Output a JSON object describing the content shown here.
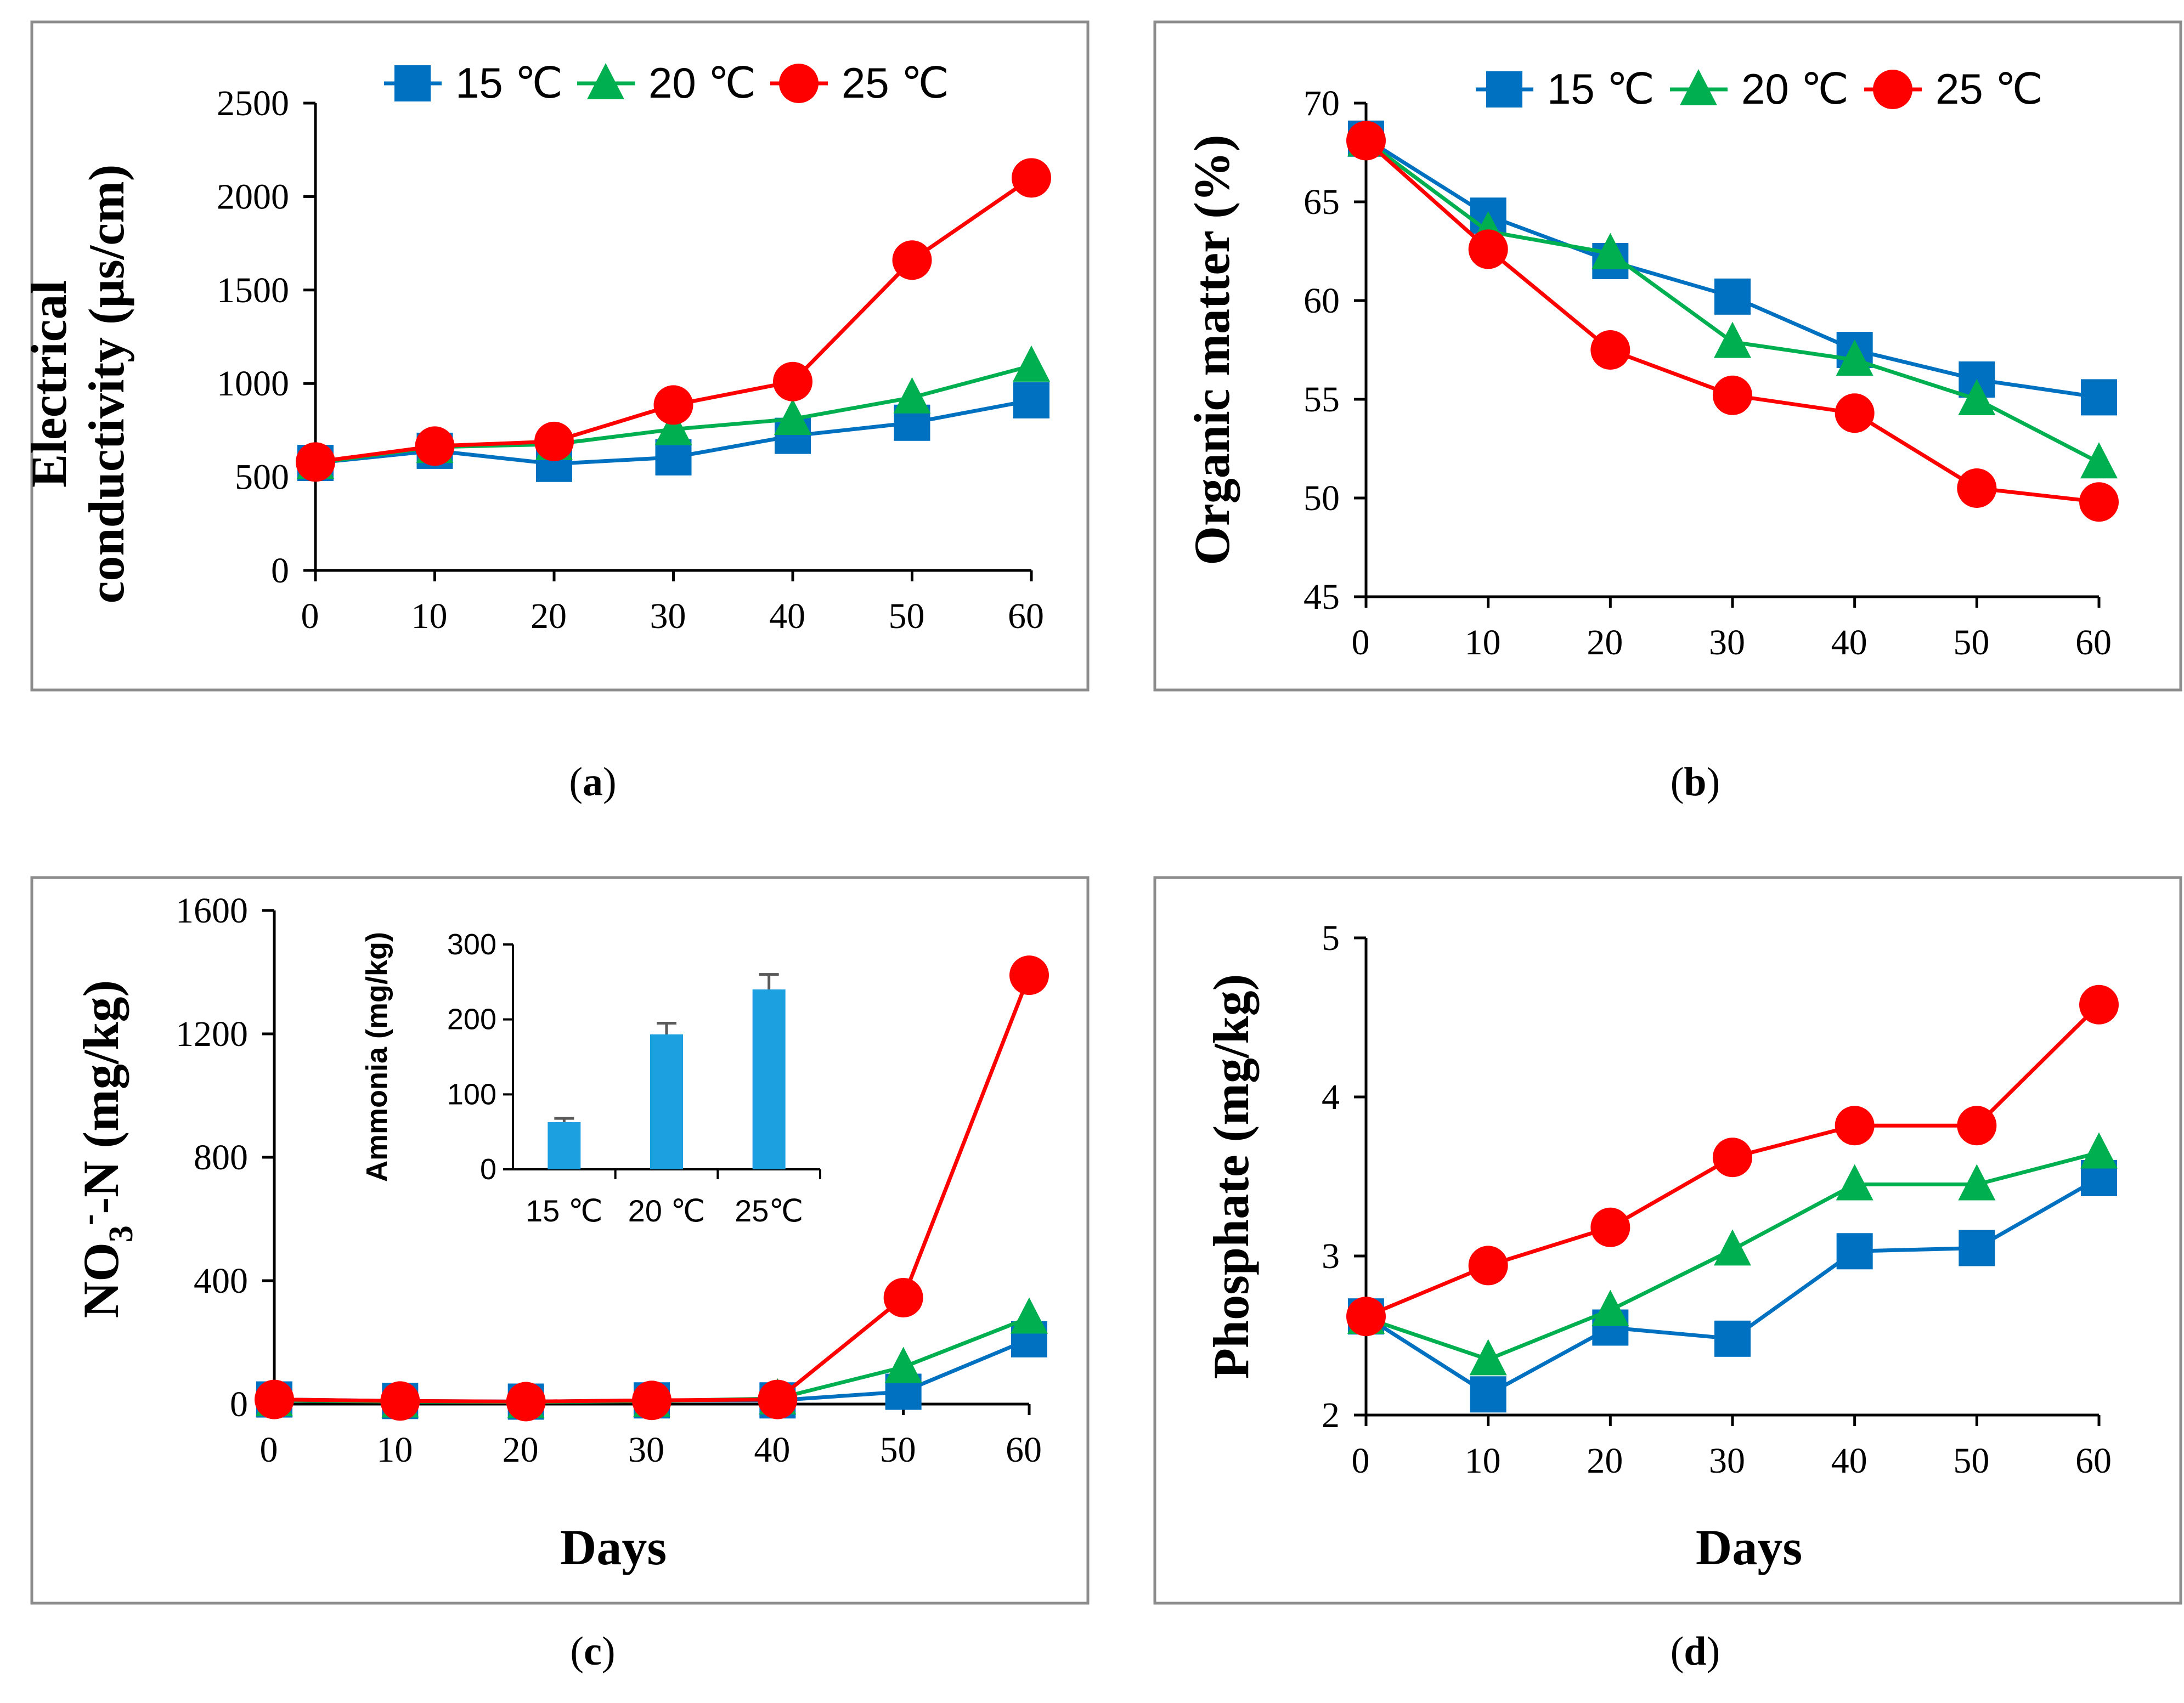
{
  "series_names": [
    "15 ℃",
    "20 ℃",
    "25 ℃"
  ],
  "colors": {
    "s15": "#0070c0",
    "s20": "#00b050",
    "s25": "#ff0000",
    "frame": "#8c8c8c",
    "axis": "#000000",
    "bar": "#1ca0e0",
    "err": "#595959"
  },
  "chart_data": [
    {
      "id": "a",
      "panel_label": "a",
      "type": "line",
      "title": "",
      "xlabel": "",
      "ylabel_lines": [
        "Electrical",
        "conductivity (μs/cm)"
      ],
      "x": [
        0,
        10,
        20,
        30,
        40,
        50,
        60
      ],
      "xticks": [
        "0",
        "10",
        "20",
        "30",
        "40",
        "50",
        "60"
      ],
      "ylim": [
        0,
        2500
      ],
      "yticks": [
        "0",
        "500",
        "1000",
        "1500",
        "2000",
        "2500"
      ],
      "legend": "top",
      "series": [
        {
          "name": "15 ℃",
          "marker": "square",
          "values": [
            575,
            640,
            570,
            605,
            720,
            790,
            910
          ]
        },
        {
          "name": "20 ℃",
          "marker": "triangle",
          "values": [
            575,
            660,
            675,
            755,
            810,
            925,
            1095
          ]
        },
        {
          "name": "25 ℃",
          "marker": "circle",
          "values": [
            580,
            665,
            690,
            885,
            1010,
            1660,
            2100
          ]
        }
      ]
    },
    {
      "id": "b",
      "panel_label": "b",
      "type": "line",
      "title": "",
      "xlabel": "",
      "ylabel_lines": [
        "Organic matter (%)"
      ],
      "x": [
        0,
        10,
        20,
        30,
        40,
        50,
        60
      ],
      "xticks": [
        "0",
        "10",
        "20",
        "30",
        "40",
        "50",
        "60"
      ],
      "ylim": [
        45,
        70
      ],
      "yticks": [
        "45",
        "50",
        "55",
        "60",
        "65",
        "70"
      ],
      "legend": "top",
      "series": [
        {
          "name": "15 ℃",
          "marker": "square",
          "values": [
            68.2,
            64.3,
            62.0,
            60.2,
            57.5,
            56.0,
            55.1
          ]
        },
        {
          "name": "20 ℃",
          "marker": "triangle",
          "values": [
            68.1,
            63.5,
            62.4,
            57.9,
            57.0,
            55.0,
            51.8
          ]
        },
        {
          "name": "25 ℃",
          "marker": "circle",
          "values": [
            68.1,
            62.6,
            57.5,
            55.2,
            54.3,
            50.5,
            49.8
          ]
        }
      ]
    },
    {
      "id": "c",
      "panel_label": "c",
      "type": "line",
      "title": "",
      "xlabel": "Days",
      "ylabel_parts": [
        "NO",
        "3",
        "-",
        "-N (mg/kg)"
      ],
      "x": [
        0,
        10,
        20,
        30,
        40,
        50,
        60
      ],
      "xticks": [
        "0",
        "10",
        "20",
        "30",
        "40",
        "50",
        "60"
      ],
      "ylim": [
        0,
        1600
      ],
      "yticks": [
        "0",
        "400",
        "800",
        "1200",
        "1600"
      ],
      "legend": "none",
      "series": [
        {
          "name": "15 ℃",
          "marker": "square",
          "values": [
            15,
            10,
            8,
            12,
            12,
            40,
            210
          ]
        },
        {
          "name": "20 ℃",
          "marker": "triangle",
          "values": [
            12,
            8,
            6,
            10,
            18,
            120,
            280
          ]
        },
        {
          "name": "25 ℃",
          "marker": "circle",
          "values": [
            15,
            10,
            8,
            12,
            15,
            345,
            1390
          ]
        }
      ],
      "inset": {
        "type": "bar",
        "categories": [
          "15 ℃",
          "20 ℃",
          "25℃"
        ],
        "values": [
          63,
          180,
          240
        ],
        "errors": [
          5,
          15,
          20
        ],
        "ylabel": "Ammonia (mg/kg)",
        "ylim": [
          0,
          300
        ],
        "yticks": [
          "0",
          "100",
          "200",
          "300"
        ]
      }
    },
    {
      "id": "d",
      "panel_label": "d",
      "type": "line",
      "title": "",
      "xlabel": "Days",
      "ylabel_lines": [
        "Phosphate (mg/kg)"
      ],
      "x": [
        0,
        10,
        20,
        30,
        40,
        50,
        60
      ],
      "xticks": [
        "0",
        "10",
        "20",
        "30",
        "40",
        "50",
        "60"
      ],
      "ylim": [
        2,
        5
      ],
      "yticks": [
        "2",
        "3",
        "4",
        "5"
      ],
      "legend": "none",
      "series": [
        {
          "name": "15 ℃",
          "marker": "square",
          "values": [
            2.62,
            2.13,
            2.55,
            2.48,
            3.03,
            3.05,
            3.49
          ]
        },
        {
          "name": "20 ℃",
          "marker": "triangle",
          "values": [
            2.61,
            2.35,
            2.66,
            3.04,
            3.45,
            3.45,
            3.65
          ]
        },
        {
          "name": "25 ℃",
          "marker": "circle",
          "values": [
            2.62,
            2.94,
            3.18,
            3.62,
            3.82,
            3.82,
            4.58
          ]
        }
      ]
    }
  ]
}
